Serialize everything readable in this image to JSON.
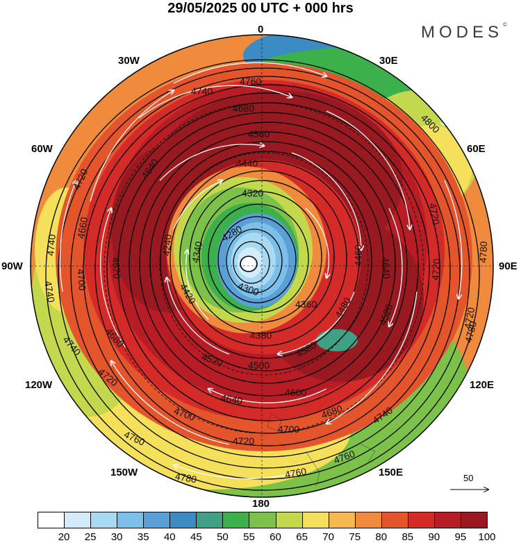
{
  "title": "29/05/2025  00 UTC  + 000 hrs",
  "brand": {
    "name": "MODES",
    "mark": "©"
  },
  "longitude_labels": {
    "north": "0",
    "n30e": "30E",
    "n60e": "60E",
    "east": "90E",
    "s120e": "120E",
    "s150e": "150E",
    "south": "180",
    "s150w": "150W",
    "s120w": "120W",
    "west": "90W",
    "n60w": "60W",
    "n30w": "30W"
  },
  "wind_reference": {
    "label": "50"
  },
  "contour_labels": {
    "c4240": "4240",
    "c4280": "4280",
    "c4300": "4300",
    "c4320": "4320",
    "c4340": "4340",
    "c4360": "4360",
    "c4380": "4380",
    "c4420": "4420",
    "c4440": "4440",
    "c4460": "4460",
    "c4480": "4480",
    "c4500": "4500",
    "c4520": "4520",
    "c4560": "4560",
    "c4580": "4580",
    "c4600": "4600",
    "c4620": "4620",
    "c4640": "4640",
    "c4660": "4660",
    "c4680": "4680",
    "c4700": "4700",
    "c4720": "4720",
    "c4740": "4740",
    "c4760": "4760",
    "c4780": "4780",
    "c4800": "4800"
  },
  "colorbar": {
    "ticks": [
      "20",
      "25",
      "30",
      "35",
      "40",
      "45",
      "50",
      "55",
      "60",
      "65",
      "70",
      "75",
      "80",
      "85",
      "90",
      "95",
      "100"
    ],
    "colors": [
      "#ffffff",
      "#d4ecfa",
      "#a8daf4",
      "#7cbfe8",
      "#5a9fd6",
      "#3c8cc4",
      "#3fa085",
      "#3cb04a",
      "#7cc24a",
      "#c4d84e",
      "#f4e05a",
      "#f6b850",
      "#f08a3c",
      "#e4552c",
      "#d42a28",
      "#b81c24",
      "#981a20"
    ]
  }
}
